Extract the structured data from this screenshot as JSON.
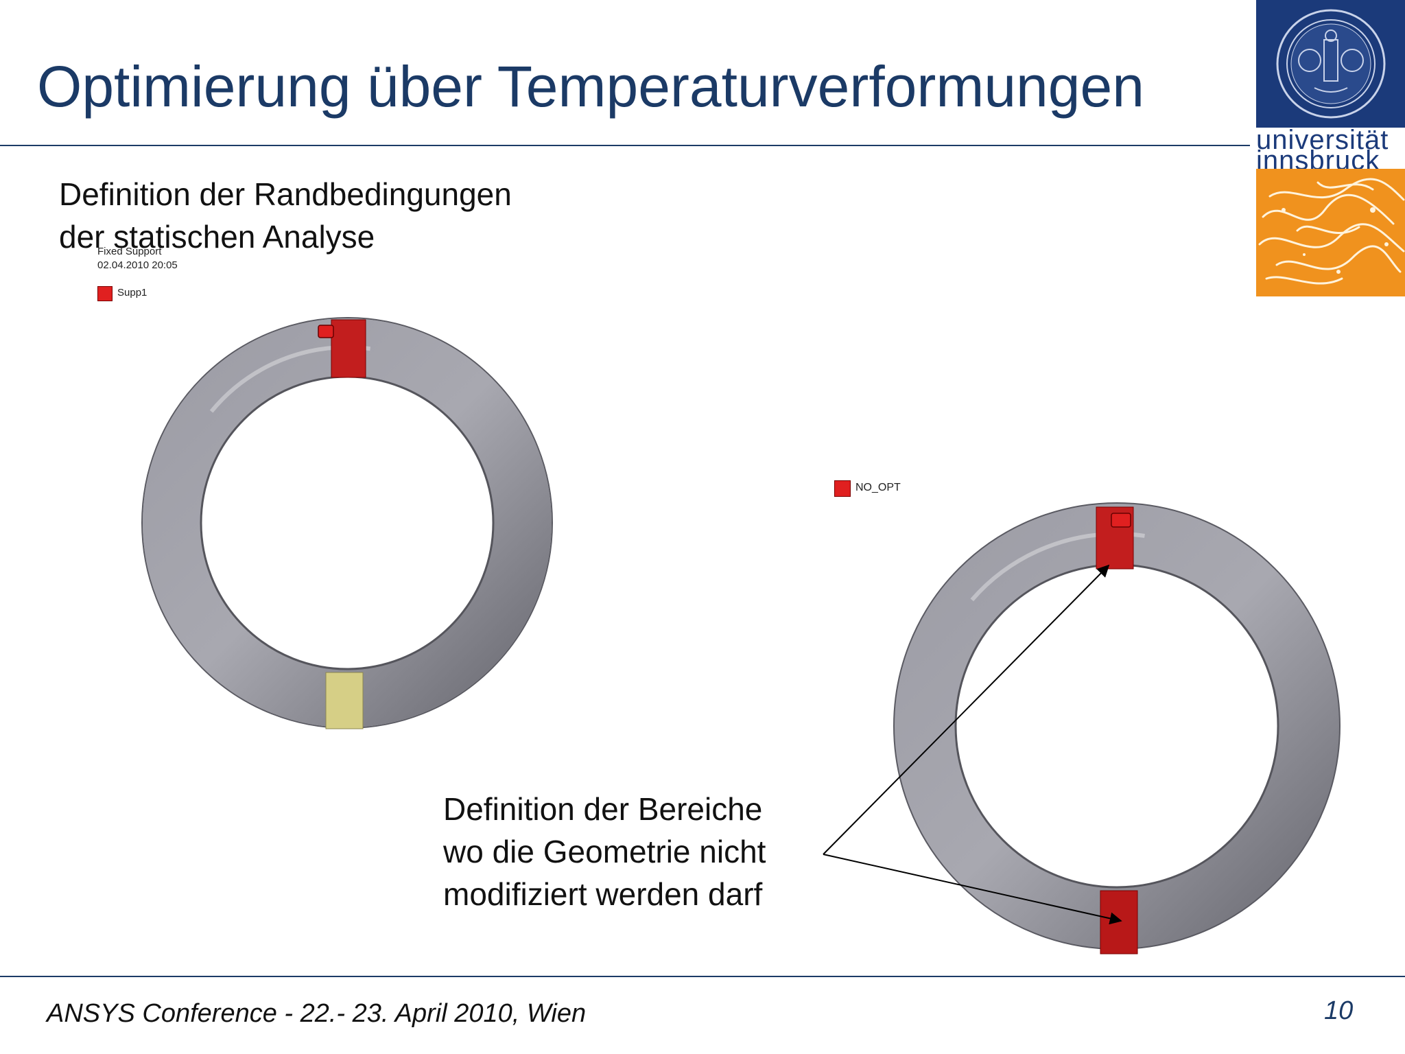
{
  "slide": {
    "title": "Optimierung über Temperaturverformungen",
    "page_number": "10"
  },
  "logo": {
    "line1": "universität",
    "line2": "innsbruck",
    "colors": {
      "blue": "#1b3a7a",
      "orange": "#f0921e"
    }
  },
  "left_panel": {
    "heading_line1": "Definition der Randbedingungen",
    "heading_line2": "der statischen Analyse",
    "viewer_label_1": "Fixed Support",
    "viewer_label_2": "02.04.2010 20:05",
    "legend_label": "Supp1"
  },
  "right_panel": {
    "legend_label": "NO_OPT",
    "callout_line1": "Definition der Bereiche",
    "callout_line2": "wo die Geometrie nicht",
    "callout_line3": "modifiziert werden darf"
  },
  "footer": {
    "conference": "ANSYS Conference  - 22.- 23. April 2010, Wien"
  },
  "colors": {
    "title": "#1b3a66",
    "highlight_red": "#c82020",
    "highlight_yellow": "#d9d28a",
    "torus_gray": "#8a8a92"
  }
}
